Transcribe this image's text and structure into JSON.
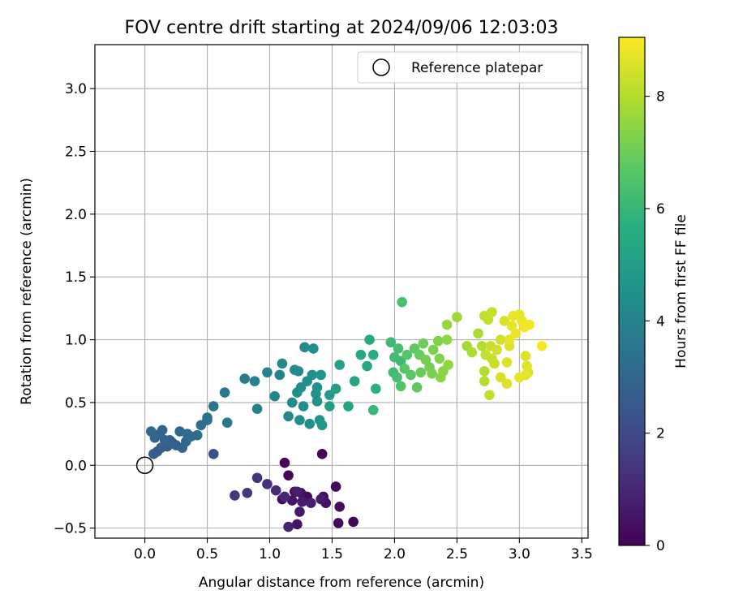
{
  "chart_data": {
    "type": "scatter",
    "title": "FOV centre drift starting at 2024/09/06 12:03:03",
    "xlabel": "Angular distance from reference (arcmin)",
    "ylabel": "Rotation from reference (arcmin)",
    "xlim": [
      -0.4,
      3.55
    ],
    "ylim": [
      -0.58,
      3.35
    ],
    "xticks": [
      "0.0",
      "0.5",
      "1.0",
      "1.5",
      "2.0",
      "2.5",
      "3.0",
      "3.5"
    ],
    "yticks": [
      "−0.5",
      "0.0",
      "0.5",
      "1.0",
      "1.5",
      "2.0",
      "2.5",
      "3.0"
    ],
    "grid": true,
    "legend": {
      "position": "top-right",
      "entries": [
        "Reference platepar"
      ]
    },
    "reference_point": {
      "name": "Reference platepar",
      "x": 0.0,
      "y": 0.0,
      "marker": "open-circle"
    },
    "colorbar": {
      "label": "Hours from first FF file",
      "range": [
        0,
        9.05
      ],
      "ticks": [
        "0",
        "2",
        "4",
        "6",
        "8"
      ],
      "colormap": "viridis"
    },
    "points": [
      [
        1.12,
        0.02,
        0.1
      ],
      [
        1.15,
        -0.08,
        0.2
      ],
      [
        1.1,
        -0.27,
        0.3
      ],
      [
        1.2,
        -0.21,
        0.3
      ],
      [
        1.25,
        -0.22,
        0.4
      ],
      [
        1.3,
        -0.25,
        0.2
      ],
      [
        1.42,
        0.09,
        0.1
      ],
      [
        1.43,
        -0.25,
        0.3
      ],
      [
        1.45,
        -0.3,
        0.4
      ],
      [
        1.53,
        -0.17,
        0.2
      ],
      [
        1.56,
        -0.33,
        0.3
      ],
      [
        1.55,
        -0.46,
        0.2
      ],
      [
        1.67,
        -0.45,
        0.1
      ],
      [
        1.22,
        -0.47,
        0.5
      ],
      [
        1.15,
        -0.49,
        0.9
      ],
      [
        1.18,
        -0.28,
        0.5
      ],
      [
        1.24,
        -0.37,
        0.6
      ],
      [
        1.26,
        -0.29,
        0.7
      ],
      [
        1.33,
        -0.3,
        0.8
      ],
      [
        1.22,
        -0.21,
        0.8
      ],
      [
        1.05,
        -0.2,
        1.0
      ],
      [
        0.98,
        -0.15,
        1.2
      ],
      [
        1.12,
        -0.25,
        1.0
      ],
      [
        0.9,
        -0.1,
        1.3
      ],
      [
        0.82,
        -0.22,
        1.4
      ],
      [
        0.72,
        -0.24,
        1.5
      ],
      [
        1.41,
        -0.27,
        0.7
      ],
      [
        0.55,
        0.09,
        2.3
      ],
      [
        0.07,
        0.09,
        2.6
      ],
      [
        0.1,
        0.11,
        2.6
      ],
      [
        0.13,
        0.14,
        2.7
      ],
      [
        0.18,
        0.15,
        2.7
      ],
      [
        0.2,
        0.2,
        2.8
      ],
      [
        0.22,
        0.18,
        2.8
      ],
      [
        0.16,
        0.2,
        2.9
      ],
      [
        0.08,
        0.22,
        2.9
      ],
      [
        0.12,
        0.25,
        3.0
      ],
      [
        0.14,
        0.28,
        3.0
      ],
      [
        0.05,
        0.27,
        3.0
      ],
      [
        0.25,
        0.16,
        2.8
      ],
      [
        0.3,
        0.14,
        2.9
      ],
      [
        0.33,
        0.19,
        3.0
      ],
      [
        0.28,
        0.27,
        3.0
      ],
      [
        0.34,
        0.25,
        3.1
      ],
      [
        0.37,
        0.23,
        3.1
      ],
      [
        0.42,
        0.24,
        3.2
      ],
      [
        0.45,
        0.32,
        3.3
      ],
      [
        0.5,
        0.36,
        3.4
      ],
      [
        0.5,
        0.38,
        3.4
      ],
      [
        0.55,
        0.47,
        3.5
      ],
      [
        0.64,
        0.58,
        3.6
      ],
      [
        0.66,
        0.34,
        3.6
      ],
      [
        0.8,
        0.69,
        3.8
      ],
      [
        0.88,
        0.67,
        3.9
      ],
      [
        0.9,
        0.45,
        3.9
      ],
      [
        0.98,
        0.74,
        4.0
      ],
      [
        1.04,
        0.55,
        4.1
      ],
      [
        1.08,
        0.72,
        4.1
      ],
      [
        1.1,
        0.81,
        4.2
      ],
      [
        1.15,
        0.39,
        4.2
      ],
      [
        1.18,
        0.5,
        4.3
      ],
      [
        1.2,
        0.76,
        4.3
      ],
      [
        1.22,
        0.58,
        4.4
      ],
      [
        1.23,
        0.75,
        4.3
      ],
      [
        1.24,
        0.36,
        4.4
      ],
      [
        1.25,
        0.62,
        4.4
      ],
      [
        1.27,
        0.47,
        4.4
      ],
      [
        1.28,
        0.94,
        4.3
      ],
      [
        1.3,
        0.67,
        4.5
      ],
      [
        1.32,
        0.33,
        4.5
      ],
      [
        1.34,
        0.72,
        4.5
      ],
      [
        1.35,
        0.93,
        4.4
      ],
      [
        1.37,
        0.57,
        4.6
      ],
      [
        1.38,
        0.62,
        4.6
      ],
      [
        1.38,
        0.51,
        4.6
      ],
      [
        1.4,
        0.36,
        4.7
      ],
      [
        1.41,
        0.72,
        4.7
      ],
      [
        1.42,
        0.32,
        4.8
      ],
      [
        1.48,
        0.56,
        4.9
      ],
      [
        1.48,
        0.47,
        5.0
      ],
      [
        1.53,
        0.61,
        5.1
      ],
      [
        1.56,
        0.8,
        5.2
      ],
      [
        1.63,
        0.47,
        5.3
      ],
      [
        1.68,
        0.67,
        5.3
      ],
      [
        1.73,
        0.88,
        5.4
      ],
      [
        1.78,
        0.79,
        5.4
      ],
      [
        1.8,
        1.0,
        5.5
      ],
      [
        1.83,
        0.88,
        5.6
      ],
      [
        1.85,
        0.61,
        5.7
      ],
      [
        1.83,
        0.44,
        6.0
      ],
      [
        1.97,
        0.98,
        6.1
      ],
      [
        1.99,
        0.74,
        6.2
      ],
      [
        2.0,
        0.86,
        6.2
      ],
      [
        2.02,
        0.7,
        6.3
      ],
      [
        2.03,
        0.93,
        6.3
      ],
      [
        2.05,
        0.83,
        6.1
      ],
      [
        2.06,
        1.3,
        6.4
      ],
      [
        2.05,
        0.63,
        6.5
      ],
      [
        2.08,
        0.77,
        6.6
      ],
      [
        2.1,
        0.88,
        6.6
      ],
      [
        2.13,
        0.72,
        6.7
      ],
      [
        2.16,
        0.93,
        6.8
      ],
      [
        2.18,
        0.62,
        6.8
      ],
      [
        2.2,
        0.88,
        6.9
      ],
      [
        2.21,
        0.74,
        6.9
      ],
      [
        2.23,
        0.97,
        7.0
      ],
      [
        2.25,
        0.84,
        7.1
      ],
      [
        2.28,
        0.78,
        7.1
      ],
      [
        2.3,
        0.73,
        7.2
      ],
      [
        2.31,
        0.92,
        7.2
      ],
      [
        2.35,
        0.99,
        7.3
      ],
      [
        2.36,
        0.85,
        7.3
      ],
      [
        2.37,
        0.7,
        7.4
      ],
      [
        2.39,
        0.75,
        7.4
      ],
      [
        2.42,
        1.0,
        7.5
      ],
      [
        2.43,
        0.8,
        7.5
      ],
      [
        2.42,
        1.12,
        7.6
      ],
      [
        2.5,
        1.18,
        7.7
      ],
      [
        2.58,
        0.95,
        7.8
      ],
      [
        2.62,
        0.9,
        7.9
      ],
      [
        2.67,
        1.05,
        7.9
      ],
      [
        2.7,
        0.95,
        8.0
      ],
      [
        2.72,
        0.67,
        8.0
      ],
      [
        2.72,
        0.75,
        8.0
      ],
      [
        2.72,
        1.19,
        8.2
      ],
      [
        2.73,
        0.88,
        8.2
      ],
      [
        2.75,
        1.16,
        8.2
      ],
      [
        2.76,
        0.56,
        8.2
      ],
      [
        2.77,
        0.95,
        8.3
      ],
      [
        2.78,
        0.85,
        8.3
      ],
      [
        2.78,
        1.22,
        8.3
      ],
      [
        2.8,
        0.81,
        8.3
      ],
      [
        2.82,
        0.92,
        8.4
      ],
      [
        2.85,
        1.0,
        8.4
      ],
      [
        2.85,
        0.7,
        8.5
      ],
      [
        2.88,
        1.15,
        8.5
      ],
      [
        2.9,
        0.82,
        8.6
      ],
      [
        2.9,
        0.65,
        8.6
      ],
      [
        2.92,
        0.95,
        8.6
      ],
      [
        2.92,
        1.0,
        8.7
      ],
      [
        2.94,
        1.11,
        8.7
      ],
      [
        2.95,
        1.19,
        8.8
      ],
      [
        2.97,
        1.05,
        8.8
      ],
      [
        3.0,
        0.7,
        8.7
      ],
      [
        3.0,
        1.2,
        8.8
      ],
      [
        3.02,
        1.15,
        8.8
      ],
      [
        3.04,
        1.1,
        8.9
      ],
      [
        3.05,
        0.72,
        8.7
      ],
      [
        3.05,
        0.87,
        8.6
      ],
      [
        3.06,
        0.79,
        8.6
      ],
      [
        3.07,
        0.74,
        8.5
      ],
      [
        3.08,
        1.12,
        8.9
      ],
      [
        3.18,
        0.95,
        9.0
      ]
    ]
  }
}
